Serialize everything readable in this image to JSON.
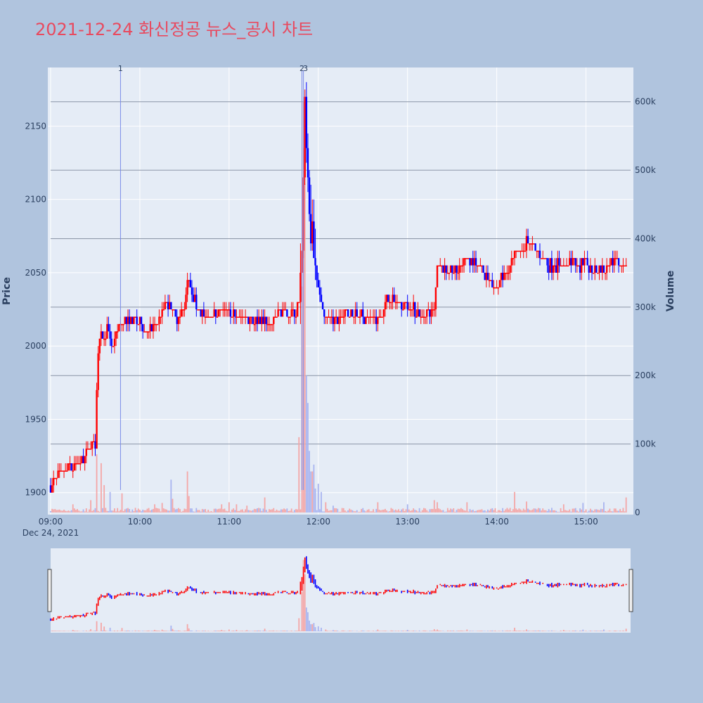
{
  "title": "2021-12-24 화신정공 뉴스_공시 차트",
  "colors": {
    "up": "#ff0000",
    "down": "#0000ff",
    "background": "#b0c4de",
    "plot_bg": "#e5ecf6",
    "title": "#e84a5f"
  },
  "chart_data": {
    "type": "candlestick",
    "title": "2021-12-24 화신정공 뉴스_공시 차트",
    "ylabel": "Price",
    "y2label": "Volume",
    "xlabel": "",
    "x_range": [
      "09:00",
      "15:30"
    ],
    "date_label": "Dec 24, 2021",
    "price_ylim": [
      1885,
      2190
    ],
    "volume_ylim": [
      0,
      650000
    ],
    "price_ticks": [
      1900,
      1950,
      2000,
      2050,
      2100,
      2150
    ],
    "volume_ticks": [
      {
        "value": 0,
        "label": "0"
      },
      {
        "value": 100000,
        "label": "100k"
      },
      {
        "value": 200000,
        "label": "200k"
      },
      {
        "value": 300000,
        "label": "300k"
      },
      {
        "value": 400000,
        "label": "400k"
      },
      {
        "value": 500000,
        "label": "500k"
      },
      {
        "value": 600000,
        "label": "600k"
      }
    ],
    "x_ticks": [
      "09:00",
      "10:00",
      "11:00",
      "12:00",
      "13:00",
      "14:00",
      "15:00"
    ],
    "markers": [
      {
        "label": "1",
        "time": "09:47"
      },
      {
        "label": "2",
        "time": "11:49"
      },
      {
        "label": "3",
        "time": "11:50"
      }
    ],
    "anchors": [
      [
        "09:00",
        1905
      ],
      [
        "09:10",
        1915
      ],
      [
        "09:20",
        1922
      ],
      [
        "09:30",
        1935
      ],
      [
        "09:31",
        1975
      ],
      [
        "09:33",
        2005
      ],
      [
        "09:38",
        2010
      ],
      [
        "09:42",
        2000
      ],
      [
        "09:45",
        2012
      ],
      [
        "09:50",
        2018
      ],
      [
        "10:00",
        2016
      ],
      [
        "10:05",
        2010
      ],
      [
        "10:12",
        2015
      ],
      [
        "10:18",
        2030
      ],
      [
        "10:25",
        2018
      ],
      [
        "10:30",
        2028
      ],
      [
        "10:32",
        2048
      ],
      [
        "10:35",
        2033
      ],
      [
        "10:45",
        2018
      ],
      [
        "10:55",
        2025
      ],
      [
        "11:05",
        2020
      ],
      [
        "11:20",
        2018
      ],
      [
        "11:28",
        2015
      ],
      [
        "11:35",
        2025
      ],
      [
        "11:45",
        2022
      ],
      [
        "11:47",
        2030
      ],
      [
        "11:49",
        2075
      ],
      [
        "11:50",
        2110
      ],
      [
        "11:51",
        2160
      ],
      [
        "11:52",
        2130
      ],
      [
        "11:53",
        2100
      ],
      [
        "11:54",
        2085
      ],
      [
        "11:56",
        2070
      ],
      [
        "11:58",
        2055
      ],
      [
        "12:00",
        2040
      ],
      [
        "12:03",
        2025
      ],
      [
        "12:10",
        2018
      ],
      [
        "12:20",
        2022
      ],
      [
        "12:30",
        2020
      ],
      [
        "12:40",
        2018
      ],
      [
        "12:48",
        2035
      ],
      [
        "12:55",
        2025
      ],
      [
        "13:00",
        2028
      ],
      [
        "13:10",
        2020
      ],
      [
        "13:18",
        2025
      ],
      [
        "13:20",
        2055
      ],
      [
        "13:30",
        2050
      ],
      [
        "13:40",
        2058
      ],
      [
        "13:50",
        2052
      ],
      [
        "14:00",
        2040
      ],
      [
        "14:05",
        2050
      ],
      [
        "14:15",
        2065
      ],
      [
        "14:22",
        2072
      ],
      [
        "14:28",
        2062
      ],
      [
        "14:35",
        2055
      ],
      [
        "14:45",
        2055
      ],
      [
        "15:00",
        2055
      ],
      [
        "15:10",
        2052
      ],
      [
        "15:20",
        2058
      ],
      [
        "15:27",
        2058
      ]
    ],
    "volume_spikes": [
      [
        "09:15",
        12000
      ],
      [
        "09:27",
        18000
      ],
      [
        "09:31",
        85000
      ],
      [
        "09:34",
        72000
      ],
      [
        "09:36",
        40000
      ],
      [
        "09:40",
        30000
      ],
      [
        "09:48",
        28000
      ],
      [
        "10:10",
        12000
      ],
      [
        "10:15",
        14000
      ],
      [
        "10:21",
        48000
      ],
      [
        "10:22",
        20000
      ],
      [
        "10:32",
        60000
      ],
      [
        "10:33",
        24000
      ],
      [
        "10:55",
        12000
      ],
      [
        "11:00",
        15000
      ],
      [
        "11:05",
        12000
      ],
      [
        "11:12",
        10000
      ],
      [
        "11:24",
        22000
      ],
      [
        "11:47",
        110000
      ],
      [
        "11:49",
        330000
      ],
      [
        "11:50",
        600000
      ],
      [
        "11:51",
        480000
      ],
      [
        "11:52",
        200000
      ],
      [
        "11:53",
        160000
      ],
      [
        "11:54",
        90000
      ],
      [
        "11:55",
        60000
      ],
      [
        "11:56",
        60000
      ],
      [
        "11:57",
        70000
      ],
      [
        "11:58",
        35000
      ],
      [
        "12:00",
        42000
      ],
      [
        "12:02",
        30000
      ],
      [
        "12:05",
        15000
      ],
      [
        "12:10",
        10000
      ],
      [
        "12:40",
        15000
      ],
      [
        "13:00",
        12000
      ],
      [
        "13:18",
        18000
      ],
      [
        "13:20",
        15000
      ],
      [
        "13:40",
        15000
      ],
      [
        "14:12",
        30000
      ],
      [
        "14:20",
        16000
      ],
      [
        "14:45",
        12000
      ],
      [
        "14:58",
        14000
      ],
      [
        "15:12",
        15000
      ],
      [
        "15:27",
        22000
      ],
      [
        "15:31",
        90000
      ]
    ]
  }
}
